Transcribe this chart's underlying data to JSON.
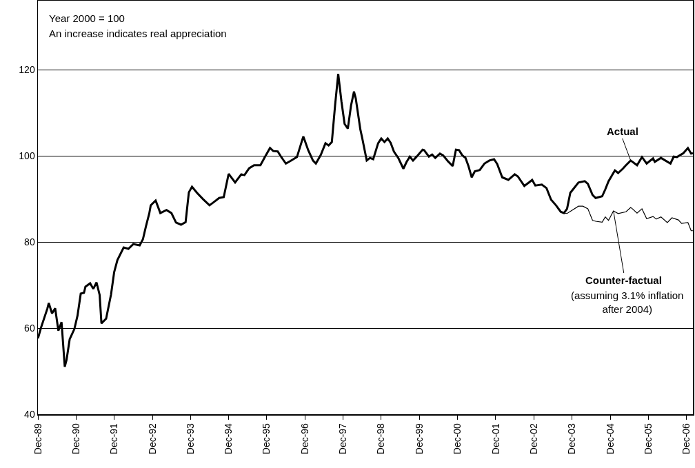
{
  "chart_data": {
    "type": "line",
    "annotations": [
      "Year 2000 = 100",
      "An increase indicates real appreciation",
      "(assuming 3.1% inflation after 2004)"
    ],
    "series": [
      {
        "name": "Actual",
        "color": "#000000",
        "x": [
          "1989-12-01",
          "1990-01-01",
          "1990-03-01",
          "1990-03-15",
          "1990-04-15",
          "1990-05-15",
          "1990-06-15",
          "1990-07-15",
          "1990-08-15",
          "1990-09-01",
          "1990-10-01",
          "1990-11-15",
          "1990-12-15",
          "1991-01-15",
          "1991-02-15",
          "1991-03-01",
          "1991-04-15",
          "1991-05-15",
          "1991-06-15",
          "1991-07-15",
          "1991-08-01",
          "1991-09-15",
          "1991-11-01",
          "1991-12-01",
          "1992-01-01",
          "1992-03-01",
          "1992-04-15",
          "1992-06-01",
          "1992-08-01",
          "1992-09-01",
          "1992-10-01",
          "1992-11-01",
          "1992-11-15",
          "1993-01-01",
          "1993-02-15",
          "1993-04-15",
          "1993-06-01",
          "1993-07-15",
          "1993-09-01",
          "1993-10-15",
          "1993-11-15",
          "1993-12-15",
          "1994-02-01",
          "1994-04-01",
          "1994-06-01",
          "1994-07-15",
          "1994-09-01",
          "1994-10-15",
          "1994-12-01",
          "1995-02-01",
          "1995-04-01",
          "1995-05-01",
          "1995-06-15",
          "1995-08-01",
          "1995-10-01",
          "1995-11-15",
          "1996-01-01",
          "1996-02-01",
          "1996-03-15",
          "1996-04-15",
          "1996-06-01",
          "1996-07-15",
          "1996-09-15",
          "1996-11-15",
          "1997-01-01",
          "1997-02-15",
          "1997-03-15",
          "1997-05-01",
          "1997-06-15",
          "1997-07-15",
          "1997-08-15",
          "1997-09-15",
          "1997-10-15",
          "1997-11-15",
          "1997-12-15",
          "1998-01-15",
          "1998-02-15",
          "1998-03-15",
          "1998-04-01",
          "1998-05-15",
          "1998-06-01",
          "1998-07-15",
          "1998-08-15",
          "1998-09-15",
          "1998-11-01",
          "1998-12-01",
          "1999-01-01",
          "1999-02-01",
          "1999-03-01",
          "1999-04-01",
          "1999-05-15",
          "1999-07-01",
          "1999-08-01",
          "1999-09-01",
          "1999-10-01",
          "1999-11-01",
          "2000-01-01",
          "2000-01-15",
          "2000-03-01",
          "2000-04-01",
          "2000-05-01",
          "2000-06-15",
          "2000-07-15",
          "2000-09-01",
          "2000-10-15",
          "2000-11-15",
          "2000-12-15",
          "2001-01-15",
          "2001-02-15",
          "2001-03-15",
          "2001-04-15",
          "2001-05-15",
          "2001-07-01",
          "2001-08-15",
          "2001-10-01",
          "2001-11-15",
          "2001-12-15",
          "2002-02-01",
          "2002-04-01",
          "2002-06-01",
          "2002-07-01",
          "2002-09-01",
          "2002-10-15",
          "2002-11-15",
          "2002-12-15",
          "2003-02-15",
          "2003-04-01",
          "2003-05-15",
          "2003-07-01",
          "2003-08-15",
          "2003-09-15",
          "2003-10-15",
          "2003-11-15",
          "2004-02-01",
          "2004-04-01",
          "2004-05-01",
          "2004-06-15",
          "2004-07-15",
          "2004-09-15",
          "2004-10-15",
          "2004-11-15",
          "2005-01-15",
          "2005-02-15",
          "2005-04-01",
          "2005-05-01",
          "2005-06-15",
          "2005-08-15",
          "2005-10-01",
          "2005-11-15",
          "2006-01-15",
          "2006-02-01",
          "2006-04-01",
          "2006-07-01",
          "2006-08-01",
          "2006-09-01",
          "2006-11-01",
          "2006-12-15",
          "2007-01-15",
          "2007-02-01"
        ],
        "values": [
          57.6,
          60.2,
          64.5,
          65.8,
          63.4,
          64.6,
          59.4,
          61.4,
          51.0,
          52.6,
          57.4,
          59.8,
          62.9,
          68.0,
          68.2,
          69.6,
          70.4,
          69.1,
          70.6,
          67.7,
          61.1,
          62.2,
          67.8,
          73.0,
          75.8,
          78.7,
          78.4,
          79.5,
          79.2,
          80.6,
          83.7,
          86.6,
          88.5,
          89.6,
          86.7,
          87.4,
          86.7,
          84.5,
          84.0,
          84.6,
          91.5,
          92.8,
          91.4,
          89.9,
          88.5,
          89.3,
          90.2,
          90.4,
          95.8,
          93.8,
          95.7,
          95.5,
          97.1,
          97.8,
          97.8,
          99.8,
          101.8,
          101.1,
          101.0,
          99.8,
          98.2,
          98.8,
          99.7,
          104.5,
          101.3,
          98.9,
          98.2,
          100.2,
          102.9,
          102.4,
          103.2,
          111.7,
          119.0,
          112.6,
          107.4,
          106.3,
          111.7,
          114.9,
          113.3,
          106.1,
          104.2,
          98.9,
          99.5,
          99.2,
          102.9,
          104.0,
          103.2,
          104.0,
          103.0,
          101.0,
          99.4,
          97.0,
          98.6,
          99.8,
          98.9,
          99.7,
          101.4,
          101.3,
          99.8,
          100.3,
          99.5,
          100.5,
          100.1,
          98.7,
          97.6,
          101.4,
          101.3,
          100.1,
          99.5,
          97.6,
          95.0,
          96.4,
          96.7,
          98.2,
          98.9,
          99.2,
          98.1,
          95.0,
          94.4,
          95.7,
          95.2,
          93.0,
          93.8,
          94.4,
          93.1,
          93.3,
          92.5,
          89.8,
          88.5,
          87.0,
          86.7,
          87.7,
          91.4,
          93.8,
          94.1,
          93.5,
          90.9,
          90.2,
          90.6,
          92.2,
          94.1,
          96.6,
          96.0,
          97.0,
          97.8,
          98.9,
          97.8,
          99.7,
          98.2,
          99.4,
          98.6,
          99.5,
          98.2,
          99.8,
          99.7,
          100.6,
          101.8,
          100.5,
          100.6
        ]
      },
      {
        "name": "Counter-factual",
        "color": "#000000",
        "x": [
          "2003-09-15",
          "2003-10-15",
          "2004-02-01",
          "2004-03-15",
          "2004-05-01",
          "2004-06-15",
          "2004-07-15",
          "2004-09-15",
          "2004-10-15",
          "2004-11-15",
          "2005-01-01",
          "2005-02-15",
          "2005-05-01",
          "2005-06-15",
          "2005-07-01",
          "2005-08-15",
          "2005-10-01",
          "2005-11-15",
          "2006-01-15",
          "2006-02-15",
          "2006-04-01",
          "2006-06-01",
          "2006-07-15",
          "2006-09-15",
          "2006-10-15",
          "2006-12-15",
          "2007-01-15",
          "2007-02-01"
        ],
        "values": [
          86.7,
          86.6,
          88.3,
          88.3,
          87.7,
          85.0,
          84.8,
          84.6,
          85.8,
          85.0,
          87.2,
          86.6,
          87.0,
          88.0,
          87.7,
          86.7,
          87.7,
          85.4,
          85.9,
          85.3,
          85.8,
          84.5,
          85.6,
          85.1,
          84.3,
          84.5,
          82.6,
          82.6
        ]
      }
    ],
    "xlim": [
      "1989-12-01",
      "2007-02-01"
    ],
    "xticks": [
      {
        "value": "1989-12-01",
        "label": "Dec-89"
      },
      {
        "value": "1990-12-01",
        "label": "Dec-90"
      },
      {
        "value": "1991-12-01",
        "label": "Dec-91"
      },
      {
        "value": "1992-12-01",
        "label": "Dec-92"
      },
      {
        "value": "1993-12-01",
        "label": "Dec-93"
      },
      {
        "value": "1994-12-01",
        "label": "Dec-94"
      },
      {
        "value": "1995-12-01",
        "label": "Dec-95"
      },
      {
        "value": "1996-12-01",
        "label": "Dec-96"
      },
      {
        "value": "1997-12-01",
        "label": "Dec-97"
      },
      {
        "value": "1998-12-01",
        "label": "Dec-98"
      },
      {
        "value": "1999-12-01",
        "label": "Dec-99"
      },
      {
        "value": "2000-12-01",
        "label": "Dec-00"
      },
      {
        "value": "2001-12-01",
        "label": "Dec-01"
      },
      {
        "value": "2002-12-01",
        "label": "Dec-02"
      },
      {
        "value": "2003-12-01",
        "label": "Dec-03"
      },
      {
        "value": "2004-12-01",
        "label": "Dec-04"
      },
      {
        "value": "2005-12-01",
        "label": "Dec-05"
      },
      {
        "value": "2006-12-01",
        "label": "Dec-06"
      }
    ],
    "ylim": [
      40,
      136
    ],
    "yticks": [
      40,
      60,
      80,
      100,
      120
    ],
    "grid": "y",
    "legend": false,
    "marker": "none",
    "line_style": "solid"
  }
}
